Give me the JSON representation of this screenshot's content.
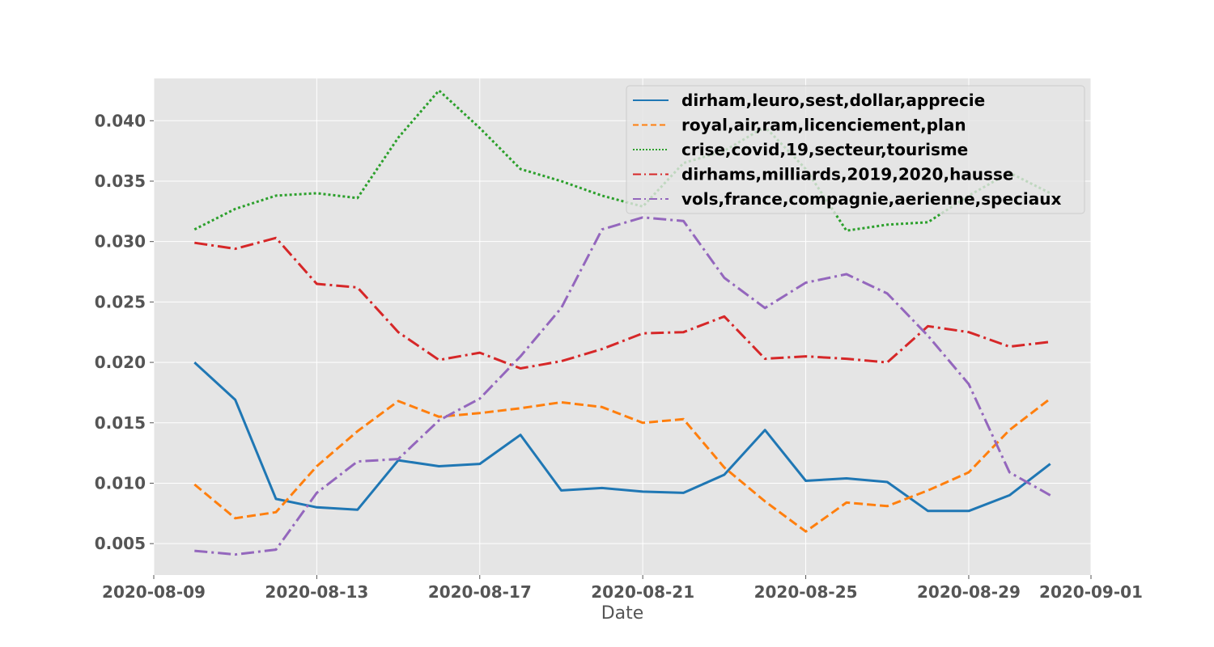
{
  "chart_data": {
    "type": "line",
    "title": "",
    "xlabel": "Date",
    "ylabel": "",
    "x": [
      "2020-08-10",
      "2020-08-11",
      "2020-08-12",
      "2020-08-13",
      "2020-08-14",
      "2020-08-15",
      "2020-08-16",
      "2020-08-17",
      "2020-08-18",
      "2020-08-19",
      "2020-08-20",
      "2020-08-21",
      "2020-08-22",
      "2020-08-23",
      "2020-08-24",
      "2020-08-25",
      "2020-08-26",
      "2020-08-27",
      "2020-08-28",
      "2020-08-29",
      "2020-08-30",
      "2020-08-31"
    ],
    "xlim": [
      "2020-08-09",
      "2020-09-01"
    ],
    "x_ticks": [
      "2020-08-09",
      "2020-08-13",
      "2020-08-17",
      "2020-08-21",
      "2020-08-25",
      "2020-08-29",
      "2020-09-01"
    ],
    "ylim": [
      0.0024,
      0.0435
    ],
    "y_ticks": [
      "0.005",
      "0.010",
      "0.015",
      "0.020",
      "0.025",
      "0.030",
      "0.035",
      "0.040"
    ],
    "grid": true,
    "legend_position": "top-right",
    "series": [
      {
        "name": "dirham,leuro,sest,dollar,apprecie",
        "color": "#1f77b4",
        "style": "solid",
        "values": [
          0.02,
          0.0169,
          0.0087,
          0.008,
          0.0078,
          0.0119,
          0.0114,
          0.0116,
          0.014,
          0.0094,
          0.0096,
          0.0093,
          0.0092,
          0.0107,
          0.0144,
          0.0102,
          0.0104,
          0.0101,
          0.0077,
          0.0077,
          0.009,
          0.0116
        ]
      },
      {
        "name": "royal,air,ram,licenciement,plan",
        "color": "#ff7f0e",
        "style": "dashed",
        "values": [
          0.0099,
          0.0071,
          0.0076,
          0.0114,
          0.0143,
          0.0168,
          0.0155,
          0.0158,
          0.0162,
          0.0167,
          0.0163,
          0.015,
          0.0153,
          0.0113,
          0.0085,
          0.006,
          0.0084,
          0.0081,
          0.0094,
          0.0109,
          0.0144,
          0.017
        ]
      },
      {
        "name": "crise,covid,19,secteur,tourisme",
        "color": "#2ca02c",
        "style": "dotted",
        "values": [
          0.031,
          0.0327,
          0.0338,
          0.034,
          0.0336,
          0.0386,
          0.0425,
          0.0394,
          0.036,
          0.035,
          0.0338,
          0.0329,
          0.0365,
          0.0375,
          0.0395,
          0.036,
          0.0309,
          0.0314,
          0.0316,
          0.0338,
          0.0357,
          0.034
        ]
      },
      {
        "name": "dirhams,milliards,2019,2020,hausse",
        "color": "#d62728",
        "style": "dashdot",
        "values": [
          0.0299,
          0.0294,
          0.0303,
          0.0265,
          0.0262,
          0.0225,
          0.0202,
          0.0208,
          0.0195,
          0.0201,
          0.0211,
          0.0224,
          0.0225,
          0.0238,
          0.0203,
          0.0205,
          0.0203,
          0.02,
          0.023,
          0.0225,
          0.0213,
          0.0217
        ]
      },
      {
        "name": "vols,france,compagnie,aerienne,speciaux",
        "color": "#9467bd",
        "style": "dashdot",
        "values": [
          0.0044,
          0.0041,
          0.0045,
          0.0092,
          0.0118,
          0.012,
          0.0152,
          0.017,
          0.0205,
          0.0245,
          0.031,
          0.032,
          0.0317,
          0.027,
          0.0245,
          0.0266,
          0.0273,
          0.0257,
          0.0222,
          0.0182,
          0.0109,
          0.009
        ]
      }
    ]
  }
}
